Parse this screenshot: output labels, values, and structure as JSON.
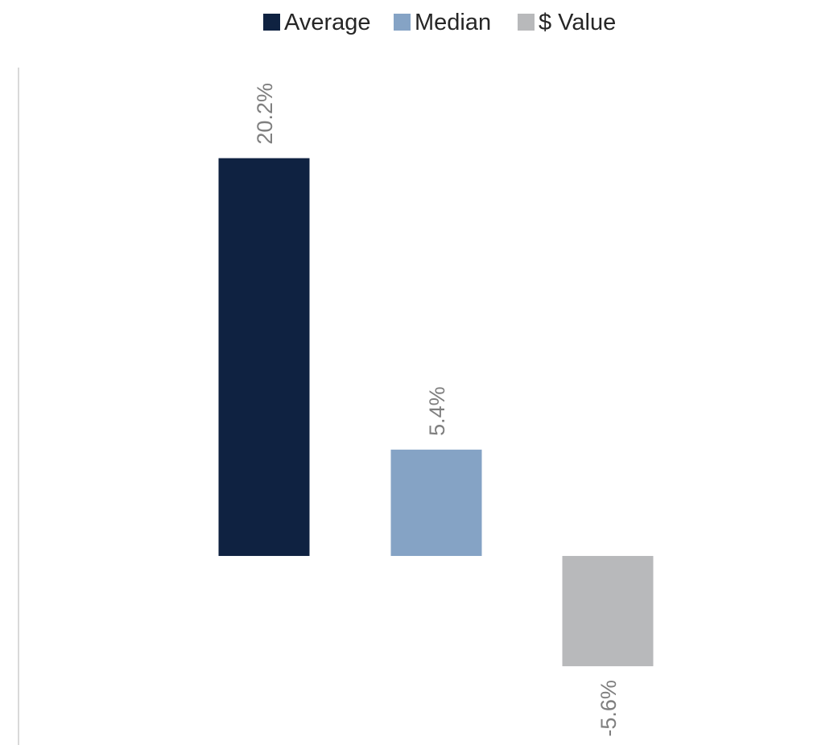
{
  "chart_data": {
    "type": "bar",
    "title": "",
    "xlabel": "",
    "ylabel": "",
    "categories": [
      "Average",
      "Median",
      "$ Value"
    ],
    "values": [
      20.2,
      5.4,
      -5.6
    ],
    "data_labels": [
      "20.2%",
      "5.4%",
      "-5.6%"
    ],
    "unit": "%",
    "ylim": [
      -9.6,
      24.8
    ],
    "grid": false,
    "legend_position": "top-center",
    "legend": [
      {
        "name": "Average",
        "color": "#0f2241"
      },
      {
        "name": "Median",
        "color": "#85a3c5"
      },
      {
        "name": "$ Value",
        "color": "#b8b9bb"
      }
    ],
    "colors": [
      "#0f2241",
      "#85a3c5",
      "#b8b9bb"
    ]
  }
}
